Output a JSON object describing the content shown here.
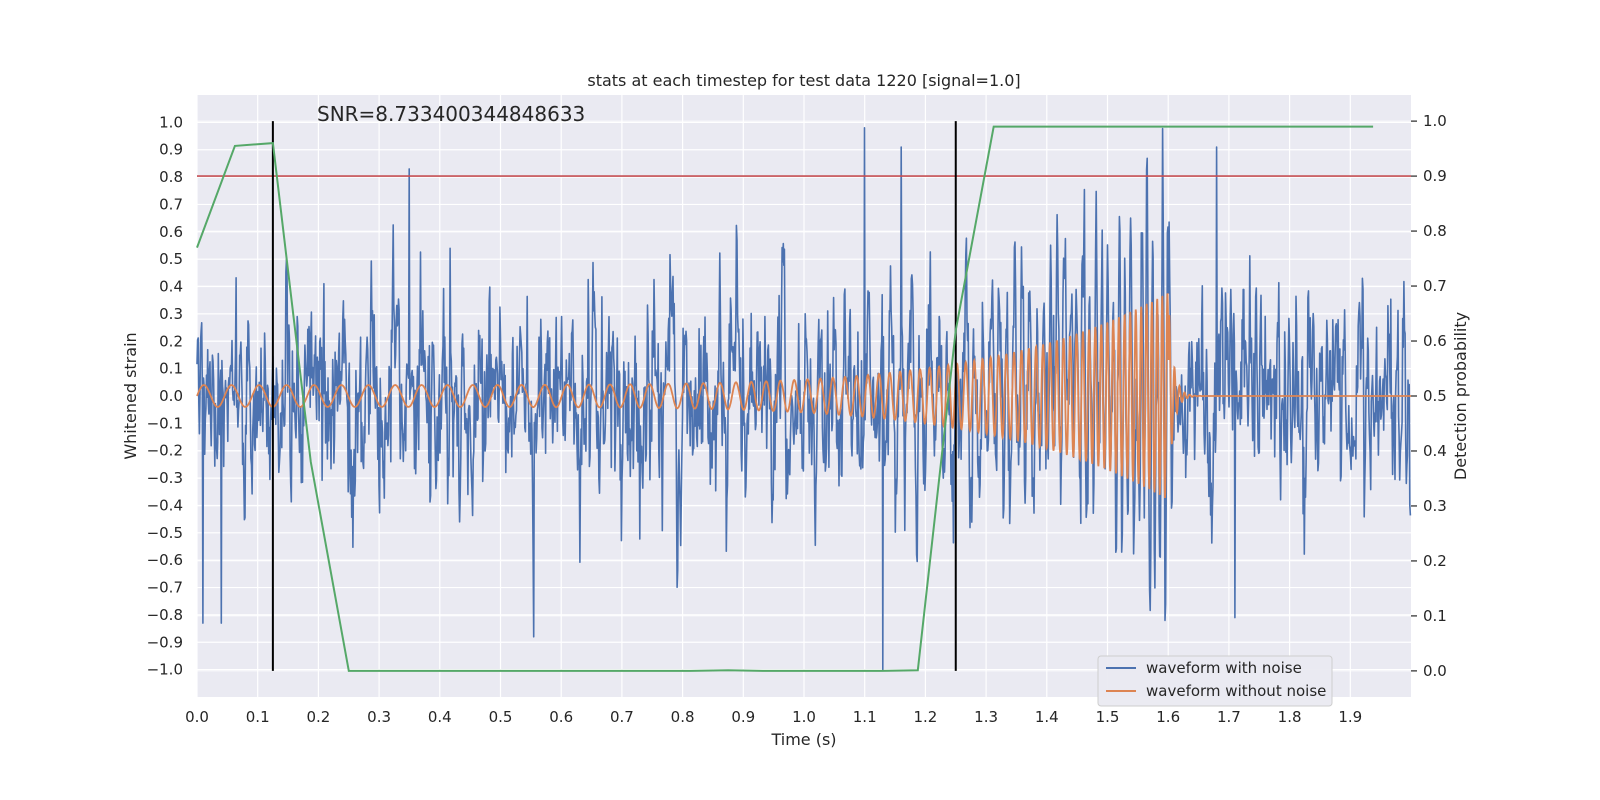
{
  "chart_data": {
    "type": "line",
    "title": "stats at each timestep for test data 1220 [signal=1.0]",
    "annotation": "SNR=8.733400344848633",
    "xlabel": "Time (s)",
    "ylabel": "Whitened strain",
    "y2label": "Detection probability",
    "xlim": [
      0.0,
      2.0
    ],
    "ylim": [
      -1.1,
      1.1
    ],
    "y2lim": [
      -0.0475,
      1.0475
    ],
    "x_ticks": [
      "0.0",
      "0.1",
      "0.2",
      "0.3",
      "0.4",
      "0.5",
      "0.6",
      "0.7",
      "0.8",
      "0.9",
      "1.0",
      "1.1",
      "1.2",
      "1.3",
      "1.4",
      "1.5",
      "1.6",
      "1.7",
      "1.8",
      "1.9"
    ],
    "y_ticks": [
      "1.0",
      "0.9",
      "0.8",
      "0.7",
      "0.6",
      "0.5",
      "0.4",
      "0.3",
      "0.2",
      "0.1",
      "0.0",
      "−0.1",
      "−0.2",
      "−0.3",
      "−0.4",
      "−0.5",
      "−0.6",
      "−0.7",
      "−0.8",
      "−0.9",
      "−1.0"
    ],
    "y2_ticks": [
      "1.0",
      "0.9",
      "0.8",
      "0.7",
      "0.6",
      "0.5",
      "0.4",
      "0.3",
      "0.2",
      "0.1",
      "0.0"
    ],
    "legend": [
      "waveform with noise",
      "waveform without noise"
    ],
    "legend_position": "lower-right",
    "colors": {
      "noisy": "#4c72b0",
      "clean": "#dd8452",
      "probability": "#55a868",
      "threshold": "#c44e52",
      "vline": "#000000",
      "background": "#eaeaf2",
      "grid": "#ffffff"
    },
    "threshold_y2": 0.9,
    "vlines_x": [
      0.125,
      1.25
    ],
    "probability": {
      "x": [
        0.0,
        0.0625,
        0.125,
        0.1875,
        0.25,
        0.3125,
        0.375,
        0.4375,
        0.5,
        0.5625,
        0.625,
        0.6875,
        0.75,
        0.8125,
        0.875,
        0.9375,
        1.0,
        1.0625,
        1.125,
        1.1875,
        1.25,
        1.3125,
        1.375,
        1.4375,
        1.5,
        1.5625,
        1.625,
        1.6875,
        1.75,
        1.8125,
        1.875,
        1.9375
      ],
      "y": [
        0.77,
        0.955,
        0.96,
        0.38,
        0.0,
        0.0,
        0.0,
        0.0,
        0.0,
        0.0,
        0.0,
        0.0,
        0.0,
        0.0,
        0.001,
        0.0,
        0.0,
        0.0,
        0.0,
        0.001,
        0.62,
        0.99,
        0.99,
        0.99,
        0.99,
        0.99,
        0.99,
        0.99,
        0.99,
        0.99,
        0.99,
        0.99
      ]
    },
    "noisy_series": {
      "name": "waveform with noise",
      "x_start": 0.0,
      "x_end": 2.0,
      "n": 2048,
      "seed": 1220,
      "noise_sigma": 0.25,
      "note_peaks": [
        {
          "x": 1.1,
          "y": 0.98
        },
        {
          "x": 1.13,
          "y": -1.0
        },
        {
          "x": 1.16,
          "y": 0.91
        },
        {
          "x": 0.35,
          "y": 0.83
        },
        {
          "x": 0.555,
          "y": -0.88
        },
        {
          "x": 1.68,
          "y": 0.91
        },
        {
          "x": 1.595,
          "y": -0.82
        },
        {
          "x": 1.71,
          "y": -0.81
        },
        {
          "x": 0.04,
          "y": -0.83
        },
        {
          "x": 0.01,
          "y": -0.83
        }
      ]
    },
    "clean_series": {
      "name": "waveform without noise",
      "description": "chirp",
      "amplitude_start": 0.04,
      "amplitude_peak": 0.38,
      "freq_start_hz": 22,
      "freq_end_hz": 120,
      "merger_x": 1.6,
      "ringdown_end_x": 1.64
    }
  }
}
